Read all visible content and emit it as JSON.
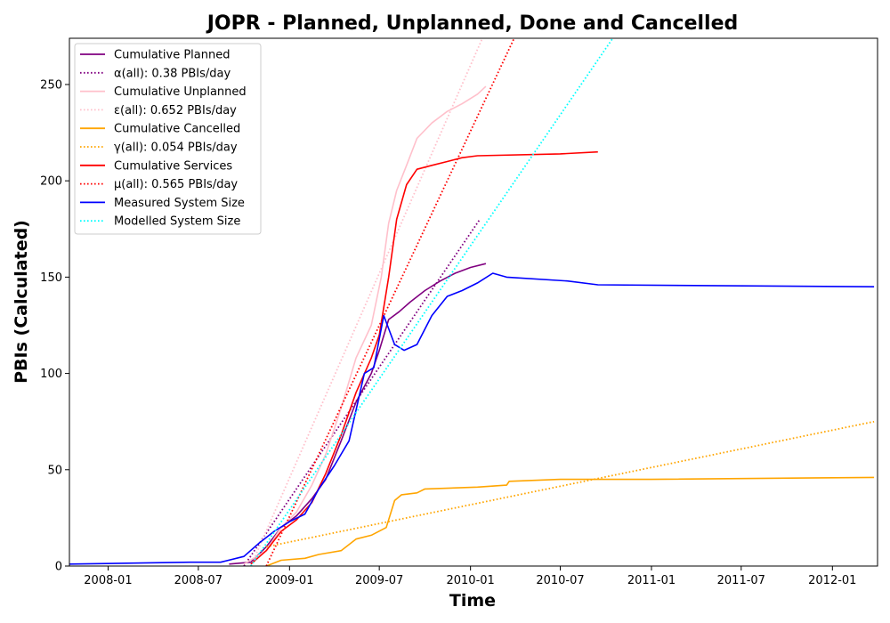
{
  "chart_data": {
    "type": "line",
    "title": "JOPR - Planned, Unplanned, Done  and Cancelled",
    "xlabel": "Time",
    "ylabel": "PBIs (Calculated)",
    "x_axis": "date",
    "xlim": [
      "2007-10-15",
      "2012-04-01"
    ],
    "ylim": [
      0,
      274
    ],
    "x_ticks": [
      "2008-01",
      "2008-07",
      "2009-01",
      "2009-07",
      "2010-01",
      "2010-07",
      "2011-01",
      "2011-07",
      "2012-01"
    ],
    "y_ticks": [
      0,
      50,
      100,
      150,
      200,
      250
    ],
    "grid": false,
    "legend_position": "upper-left",
    "series": [
      {
        "name": "Cumulative Planned",
        "color": "#800080",
        "style": "solid",
        "points": [
          [
            "2008-09-01",
            1
          ],
          [
            "2008-10-15",
            2
          ],
          [
            "2008-11-15",
            10
          ],
          [
            "2008-12-15",
            20
          ],
          [
            "2009-01-15",
            26
          ],
          [
            "2009-02-15",
            35
          ],
          [
            "2009-03-15",
            45
          ],
          [
            "2009-04-15",
            65
          ],
          [
            "2009-05-15",
            85
          ],
          [
            "2009-06-15",
            100
          ],
          [
            "2009-07-01",
            112
          ],
          [
            "2009-07-20",
            128
          ],
          [
            "2009-08-10",
            132
          ],
          [
            "2009-09-01",
            137
          ],
          [
            "2009-10-01",
            143
          ],
          [
            "2009-11-01",
            148
          ],
          [
            "2009-12-01",
            152
          ],
          [
            "2010-01-01",
            155
          ],
          [
            "2010-02-01",
            157
          ]
        ]
      },
      {
        "name": "α(all): 0.38 PBIs/day",
        "color": "#800080",
        "style": "dotted",
        "points": [
          [
            "2008-10-01",
            0
          ],
          [
            "2010-01-20",
            180
          ]
        ]
      },
      {
        "name": "Cumulative Unplanned",
        "color": "#ffc0cb",
        "style": "solid",
        "points": [
          [
            "2008-10-01",
            1
          ],
          [
            "2008-11-15",
            8
          ],
          [
            "2008-12-15",
            20
          ],
          [
            "2009-01-15",
            28
          ],
          [
            "2009-02-15",
            42
          ],
          [
            "2009-03-15",
            58
          ],
          [
            "2009-04-15",
            82
          ],
          [
            "2009-05-15",
            108
          ],
          [
            "2009-06-15",
            125
          ],
          [
            "2009-07-05",
            150
          ],
          [
            "2009-07-20",
            178
          ],
          [
            "2009-08-05",
            195
          ],
          [
            "2009-08-25",
            208
          ],
          [
            "2009-09-15",
            222
          ],
          [
            "2009-10-15",
            230
          ],
          [
            "2009-11-15",
            236
          ],
          [
            "2009-12-15",
            240
          ],
          [
            "2010-01-15",
            245
          ],
          [
            "2010-02-01",
            249
          ]
        ]
      },
      {
        "name": "ε(all): 0.652 PBIs/day",
        "color": "#ffc0cb",
        "style": "dotted",
        "points": [
          [
            "2008-10-15",
            0
          ],
          [
            "2010-01-25",
            274
          ]
        ]
      },
      {
        "name": "Cumulative Cancelled",
        "color": "#ffa500",
        "style": "solid",
        "points": [
          [
            "2008-11-15",
            0
          ],
          [
            "2008-12-15",
            3
          ],
          [
            "2009-02-01",
            4
          ],
          [
            "2009-03-01",
            6
          ],
          [
            "2009-04-15",
            8
          ],
          [
            "2009-05-15",
            14
          ],
          [
            "2009-06-15",
            16
          ],
          [
            "2009-07-15",
            20
          ],
          [
            "2009-08-01",
            34
          ],
          [
            "2009-08-15",
            37
          ],
          [
            "2009-09-15",
            38
          ],
          [
            "2009-10-01",
            40
          ],
          [
            "2010-01-15",
            41
          ],
          [
            "2010-03-15",
            42
          ],
          [
            "2010-03-20",
            44
          ],
          [
            "2010-07-01",
            45
          ],
          [
            "2011-01-01",
            45
          ],
          [
            "2012-03-25",
            46
          ]
        ]
      },
      {
        "name": "γ(all): 0.054 PBIs/day",
        "color": "#ffa500",
        "style": "dotted",
        "points": [
          [
            "2008-11-15",
            10
          ],
          [
            "2012-03-25",
            75
          ]
        ]
      },
      {
        "name": "Cumulative Services",
        "color": "#ff0000",
        "style": "solid",
        "points": [
          [
            "2008-10-15",
            1
          ],
          [
            "2008-11-15",
            8
          ],
          [
            "2008-12-15",
            18
          ],
          [
            "2009-01-15",
            24
          ],
          [
            "2009-02-15",
            33
          ],
          [
            "2009-03-15",
            48
          ],
          [
            "2009-04-15",
            68
          ],
          [
            "2009-05-15",
            90
          ],
          [
            "2009-06-15",
            108
          ],
          [
            "2009-07-01",
            120
          ],
          [
            "2009-07-20",
            150
          ],
          [
            "2009-08-05",
            180
          ],
          [
            "2009-08-25",
            198
          ],
          [
            "2009-09-15",
            206
          ],
          [
            "2009-10-15",
            208
          ],
          [
            "2009-11-15",
            210
          ],
          [
            "2009-12-15",
            212
          ],
          [
            "2010-01-15",
            213
          ],
          [
            "2010-07-01",
            214
          ],
          [
            "2010-09-15",
            215
          ]
        ]
      },
      {
        "name": "μ(all): 0.565 PBIs/day",
        "color": "#ff0000",
        "style": "dotted",
        "points": [
          [
            "2008-11-15",
            0
          ],
          [
            "2010-03-30",
            274
          ]
        ]
      },
      {
        "name": "Measured System Size",
        "color": "#0000ff",
        "style": "solid",
        "points": [
          [
            "2007-10-15",
            1
          ],
          [
            "2008-06-15",
            2
          ],
          [
            "2008-08-15",
            2
          ],
          [
            "2008-10-01",
            5
          ],
          [
            "2008-11-01",
            12
          ],
          [
            "2008-12-01",
            18
          ],
          [
            "2009-01-01",
            23
          ],
          [
            "2009-02-01",
            27
          ],
          [
            "2009-03-01",
            40
          ],
          [
            "2009-04-01",
            52
          ],
          [
            "2009-05-01",
            65
          ],
          [
            "2009-06-01",
            100
          ],
          [
            "2009-06-20",
            103
          ],
          [
            "2009-07-10",
            130
          ],
          [
            "2009-08-01",
            115
          ],
          [
            "2009-08-20",
            112
          ],
          [
            "2009-09-15",
            115
          ],
          [
            "2009-10-15",
            130
          ],
          [
            "2009-11-15",
            140
          ],
          [
            "2009-12-15",
            143
          ],
          [
            "2010-01-15",
            147
          ],
          [
            "2010-02-15",
            152
          ],
          [
            "2010-03-15",
            150
          ],
          [
            "2010-07-15",
            148
          ],
          [
            "2010-09-15",
            146
          ],
          [
            "2012-03-25",
            145
          ]
        ]
      },
      {
        "name": "Modelled System Size",
        "color": "#00ffff",
        "style": "dotted",
        "points": [
          [
            "2008-10-15",
            0
          ],
          [
            "2010-10-15",
            274
          ]
        ]
      }
    ]
  }
}
